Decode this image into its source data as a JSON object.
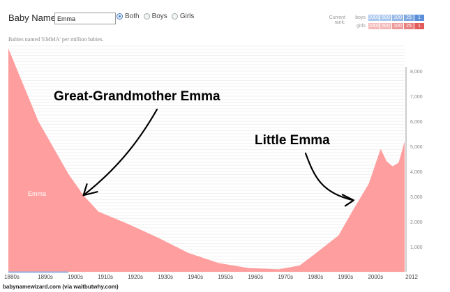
{
  "header": {
    "title": "Baby Name >",
    "name_value": "Emma",
    "radios": [
      {
        "label": "Both",
        "checked": true
      },
      {
        "label": "Boys",
        "checked": false
      },
      {
        "label": "Girls",
        "checked": false
      }
    ],
    "rank": {
      "label": "Current rank:",
      "boys_label": "boys",
      "girls_label": "girls",
      "cells": [
        "1000",
        "500",
        "100",
        "25",
        "1"
      ],
      "boys_colors": [
        "#aac8ee",
        "#aac8ee",
        "#98b8e6",
        "#7ea8df",
        "#5b8fd9"
      ],
      "girls_colors": [
        "#f5b8b8",
        "#f5b8b8",
        "#ee9a9a",
        "#e97f7f",
        "#e25c5c"
      ]
    }
  },
  "subtitle": "Babies named 'EMMA' per million babies.",
  "footer": "babynamewizard.com (via waitbutwhy.com)",
  "chart_data": {
    "type": "area",
    "series": [
      {
        "name": "Emma",
        "color": "#ff9e9e",
        "x": [
          1880,
          1890,
          1900,
          1905,
          1910,
          1920,
          1930,
          1940,
          1950,
          1960,
          1970,
          1977,
          1982,
          1990,
          1995,
          2000,
          2002,
          2004,
          2006,
          2008,
          2010,
          2012
        ],
        "values": [
          8900,
          6000,
          3900,
          3050,
          2400,
          1900,
          1350,
          750,
          350,
          150,
          100,
          250,
          700,
          1450,
          2500,
          3500,
          4200,
          4900,
          4400,
          4200,
          4350,
          5200
        ]
      }
    ],
    "x_ticks": [
      "1880s",
      "1890s",
      "1900s",
      "1910s",
      "1920s",
      "1930s",
      "1940s",
      "1950s",
      "1960s",
      "1970s",
      "1980s",
      "1990s",
      "2000s",
      "2012"
    ],
    "y_ticks": [
      "1,000",
      "2,000",
      "3,000",
      "4,000",
      "5,000",
      "6,000",
      "7,000",
      "8,000"
    ],
    "ylim": [
      0,
      9000
    ],
    "xlim": [
      1880,
      2012
    ],
    "grid": true,
    "annotations": [
      {
        "text": "Great-Grandmother Emma",
        "target_x": 1905,
        "target_y": 3050
      },
      {
        "text": "Little Emma",
        "target_x": 1995,
        "target_y": 2850
      }
    ]
  }
}
